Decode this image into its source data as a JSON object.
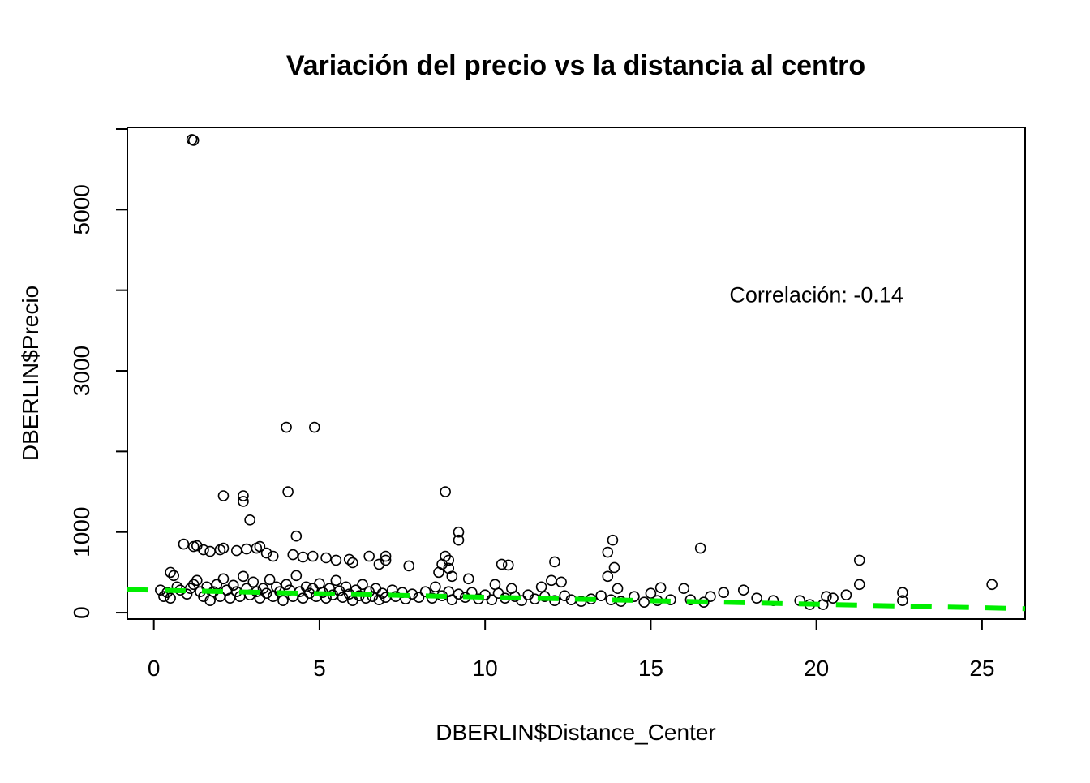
{
  "chart_data": {
    "type": "scatter",
    "title": "Variación del precio vs la distancia al centro",
    "xlabel": "DBERLIN$Distance_Center",
    "ylabel": "DBERLIN$Precio",
    "xlim": [
      -0.8,
      26.3
    ],
    "ylim": [
      -80,
      6020
    ],
    "x_ticks": [
      0,
      5,
      10,
      15,
      20,
      25
    ],
    "x_tick_labels": [
      "0",
      "5",
      "10",
      "15",
      "20",
      "25"
    ],
    "y_ticks": [
      0,
      1000,
      2000,
      3000,
      4000,
      5000,
      6000
    ],
    "y_tick_labels": [
      "0",
      "1000",
      "",
      "3000",
      "",
      "5000",
      ""
    ],
    "annotation": {
      "text": "Correlación: -0.14",
      "x": 20,
      "y": 3950
    },
    "grid": false,
    "point_style": "open-circle",
    "point_color": "#000000",
    "trend_line": {
      "style": "dashed",
      "color": "#00EE00",
      "intercept": 280,
      "slope": -8.8
    },
    "points": [
      [
        1.15,
        5870
      ],
      [
        1.2,
        5860
      ],
      [
        4.0,
        2300
      ],
      [
        4.85,
        2300
      ],
      [
        2.1,
        1450
      ],
      [
        2.7,
        1450
      ],
      [
        2.7,
        1380
      ],
      [
        2.9,
        1150
      ],
      [
        4.05,
        1500
      ],
      [
        8.8,
        1500
      ],
      [
        4.3,
        950
      ],
      [
        9.2,
        1000
      ],
      [
        9.2,
        900
      ],
      [
        0.9,
        850
      ],
      [
        1.2,
        820
      ],
      [
        1.3,
        830
      ],
      [
        3.2,
        820
      ],
      [
        3.1,
        800
      ],
      [
        1.5,
        780
      ],
      [
        1.7,
        760
      ],
      [
        2.0,
        780
      ],
      [
        2.1,
        800
      ],
      [
        2.5,
        770
      ],
      [
        2.8,
        790
      ],
      [
        3.4,
        740
      ],
      [
        3.6,
        700
      ],
      [
        4.2,
        720
      ],
      [
        4.5,
        690
      ],
      [
        4.8,
        700
      ],
      [
        5.2,
        680
      ],
      [
        5.5,
        650
      ],
      [
        5.9,
        660
      ],
      [
        6.0,
        620
      ],
      [
        6.5,
        700
      ],
      [
        7.0,
        700
      ],
      [
        7.0,
        650
      ],
      [
        6.8,
        600
      ],
      [
        7.7,
        580
      ],
      [
        8.8,
        700
      ],
      [
        8.9,
        650
      ],
      [
        8.7,
        600
      ],
      [
        8.9,
        550
      ],
      [
        8.6,
        500
      ],
      [
        9.5,
        420
      ],
      [
        9.0,
        450
      ],
      [
        10.5,
        600
      ],
      [
        10.7,
        590
      ],
      [
        10.3,
        350
      ],
      [
        10.8,
        300
      ],
      [
        12.1,
        630
      ],
      [
        12.0,
        400
      ],
      [
        12.3,
        380
      ],
      [
        11.7,
        320
      ],
      [
        13.7,
        750
      ],
      [
        13.85,
        900
      ],
      [
        13.9,
        560
      ],
      [
        13.7,
        450
      ],
      [
        14.0,
        300
      ],
      [
        14.5,
        200
      ],
      [
        15.0,
        240
      ],
      [
        15.3,
        310
      ],
      [
        16.0,
        300
      ],
      [
        16.5,
        800
      ],
      [
        16.8,
        200
      ],
      [
        17.2,
        250
      ],
      [
        17.8,
        280
      ],
      [
        18.2,
        180
      ],
      [
        18.7,
        150
      ],
      [
        19.5,
        150
      ],
      [
        19.8,
        100
      ],
      [
        20.2,
        100
      ],
      [
        20.3,
        200
      ],
      [
        20.5,
        180
      ],
      [
        20.9,
        220
      ],
      [
        21.3,
        650
      ],
      [
        21.3,
        350
      ],
      [
        22.6,
        250
      ],
      [
        22.6,
        150
      ],
      [
        25.3,
        350
      ],
      [
        0.2,
        280
      ],
      [
        0.3,
        200
      ],
      [
        0.4,
        250
      ],
      [
        0.5,
        180
      ],
      [
        0.5,
        500
      ],
      [
        0.6,
        460
      ],
      [
        0.7,
        320
      ],
      [
        0.8,
        280
      ],
      [
        1.0,
        230
      ],
      [
        1.1,
        300
      ],
      [
        1.2,
        350
      ],
      [
        1.3,
        400
      ],
      [
        1.4,
        260
      ],
      [
        1.5,
        200
      ],
      [
        1.6,
        320
      ],
      [
        1.7,
        150
      ],
      [
        1.8,
        260
      ],
      [
        1.9,
        350
      ],
      [
        2.0,
        200
      ],
      [
        2.1,
        420
      ],
      [
        2.2,
        280
      ],
      [
        2.3,
        180
      ],
      [
        2.4,
        340
      ],
      [
        2.5,
        260
      ],
      [
        2.6,
        200
      ],
      [
        2.7,
        450
      ],
      [
        2.8,
        300
      ],
      [
        2.9,
        220
      ],
      [
        3.0,
        380
      ],
      [
        3.1,
        260
      ],
      [
        3.2,
        180
      ],
      [
        3.3,
        300
      ],
      [
        3.4,
        240
      ],
      [
        3.5,
        410
      ],
      [
        3.6,
        200
      ],
      [
        3.7,
        320
      ],
      [
        3.8,
        260
      ],
      [
        3.9,
        150
      ],
      [
        4.0,
        350
      ],
      [
        4.1,
        280
      ],
      [
        4.2,
        200
      ],
      [
        4.3,
        460
      ],
      [
        4.4,
        260
      ],
      [
        4.5,
        180
      ],
      [
        4.6,
        320
      ],
      [
        4.7,
        240
      ],
      [
        4.8,
        300
      ],
      [
        4.9,
        200
      ],
      [
        5.0,
        360
      ],
      [
        5.1,
        250
      ],
      [
        5.2,
        180
      ],
      [
        5.3,
        300
      ],
      [
        5.4,
        220
      ],
      [
        5.5,
        400
      ],
      [
        5.6,
        270
      ],
      [
        5.7,
        190
      ],
      [
        5.8,
        320
      ],
      [
        5.9,
        230
      ],
      [
        6.0,
        150
      ],
      [
        6.1,
        280
      ],
      [
        6.2,
        210
      ],
      [
        6.3,
        350
      ],
      [
        6.4,
        180
      ],
      [
        6.5,
        260
      ],
      [
        6.6,
        200
      ],
      [
        6.7,
        300
      ],
      [
        6.8,
        160
      ],
      [
        6.9,
        240
      ],
      [
        7.0,
        190
      ],
      [
        7.2,
        280
      ],
      [
        7.3,
        200
      ],
      [
        7.5,
        250
      ],
      [
        7.6,
        170
      ],
      [
        7.8,
        230
      ],
      [
        8.0,
        190
      ],
      [
        8.2,
        260
      ],
      [
        8.4,
        180
      ],
      [
        8.5,
        320
      ],
      [
        8.7,
        210
      ],
      [
        8.9,
        260
      ],
      [
        9.0,
        160
      ],
      [
        9.2,
        230
      ],
      [
        9.4,
        190
      ],
      [
        9.6,
        250
      ],
      [
        9.8,
        170
      ],
      [
        10.0,
        220
      ],
      [
        10.2,
        160
      ],
      [
        10.4,
        240
      ],
      [
        10.6,
        180
      ],
      [
        10.9,
        200
      ],
      [
        11.1,
        150
      ],
      [
        11.3,
        220
      ],
      [
        11.5,
        170
      ],
      [
        11.8,
        200
      ],
      [
        12.1,
        150
      ],
      [
        12.4,
        210
      ],
      [
        12.6,
        160
      ],
      [
        12.9,
        140
      ],
      [
        13.2,
        170
      ],
      [
        13.5,
        210
      ],
      [
        13.8,
        160
      ],
      [
        14.1,
        140
      ],
      [
        14.8,
        130
      ],
      [
        15.2,
        150
      ],
      [
        15.6,
        160
      ],
      [
        16.2,
        160
      ],
      [
        16.6,
        130
      ]
    ]
  }
}
